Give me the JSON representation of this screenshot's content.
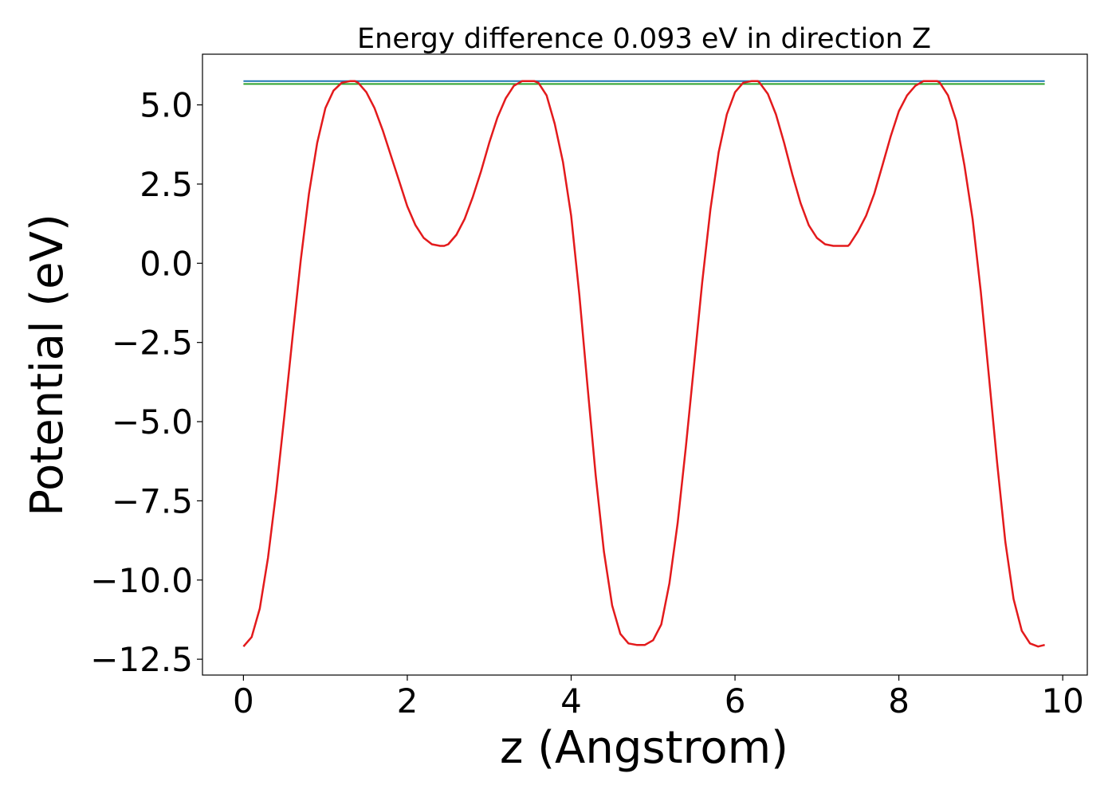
{
  "chart_data": {
    "type": "line",
    "title": "Energy difference 0.093 eV in direction Z",
    "xlabel": "z (Angstrom)",
    "ylabel": "Potential (eV)",
    "xlim": [
      -0.5,
      10.3
    ],
    "ylim": [
      -13.0,
      6.6
    ],
    "xticks": [
      0,
      2,
      4,
      6,
      8,
      10
    ],
    "xtick_labels": [
      "0",
      "2",
      "4",
      "6",
      "8",
      "10"
    ],
    "yticks": [
      -12.5,
      -10.0,
      -7.5,
      -5.0,
      -2.5,
      0.0,
      2.5,
      5.0
    ],
    "ytick_labels": [
      "−12.5",
      "−10.0",
      "−7.5",
      "−5.0",
      "−2.5",
      "0.0",
      "2.5",
      "5.0"
    ],
    "grid": false,
    "legend": "none",
    "colors": {
      "potential": "#e31a1c",
      "upper_line": "#1f77b4",
      "lower_line": "#2ca02c",
      "axis": "#000000"
    },
    "series": [
      {
        "x": [
          0.0,
          0.1,
          0.2,
          0.3,
          0.4,
          0.5,
          0.6,
          0.7,
          0.8,
          0.9,
          1.0,
          1.1,
          1.2,
          1.3,
          1.36,
          1.4,
          1.5,
          1.6,
          1.7,
          1.8,
          1.9,
          2.0,
          2.1,
          2.2,
          2.3,
          2.4,
          2.45,
          2.5,
          2.6,
          2.7,
          2.8,
          2.9,
          3.0,
          3.1,
          3.2,
          3.3,
          3.4,
          3.5,
          3.55,
          3.6,
          3.7,
          3.8,
          3.9,
          4.0,
          4.1,
          4.2,
          4.3,
          4.4,
          4.5,
          4.6,
          4.7,
          4.8,
          4.9,
          5.0,
          5.1,
          5.2,
          5.3,
          5.4,
          5.5,
          5.6,
          5.7,
          5.8,
          5.9,
          6.0,
          6.1,
          6.2,
          6.28,
          6.3,
          6.4,
          6.5,
          6.6,
          6.7,
          6.8,
          6.9,
          7.0,
          7.1,
          7.2,
          7.3,
          7.38,
          7.4,
          7.5,
          7.6,
          7.7,
          7.8,
          7.9,
          8.0,
          8.1,
          8.2,
          8.3,
          8.4,
          8.47,
          8.5,
          8.6,
          8.7,
          8.8,
          8.9,
          9.0,
          9.1,
          9.2,
          9.3,
          9.4,
          9.5,
          9.6,
          9.7,
          9.78
        ],
        "y": [
          -12.1,
          -11.8,
          -10.9,
          -9.3,
          -7.2,
          -4.8,
          -2.3,
          0.1,
          2.2,
          3.8,
          4.9,
          5.45,
          5.7,
          5.75,
          5.75,
          5.7,
          5.4,
          4.9,
          4.2,
          3.4,
          2.6,
          1.8,
          1.2,
          0.8,
          0.6,
          0.55,
          0.55,
          0.6,
          0.9,
          1.4,
          2.1,
          2.9,
          3.8,
          4.6,
          5.2,
          5.6,
          5.75,
          5.75,
          5.75,
          5.7,
          5.3,
          4.4,
          3.2,
          1.5,
          -1.0,
          -3.9,
          -6.7,
          -9.1,
          -10.8,
          -11.7,
          -12.0,
          -12.05,
          -12.05,
          -11.9,
          -11.4,
          -10.1,
          -8.2,
          -5.8,
          -3.2,
          -0.6,
          1.7,
          3.5,
          4.7,
          5.4,
          5.7,
          5.75,
          5.75,
          5.7,
          5.35,
          4.7,
          3.8,
          2.8,
          1.9,
          1.2,
          0.8,
          0.6,
          0.55,
          0.55,
          0.55,
          0.6,
          1.0,
          1.5,
          2.2,
          3.1,
          4.0,
          4.8,
          5.3,
          5.6,
          5.75,
          5.75,
          5.75,
          5.7,
          5.3,
          4.5,
          3.1,
          1.4,
          -0.9,
          -3.6,
          -6.3,
          -8.8,
          -10.6,
          -11.6,
          -12.0,
          -12.1,
          -12.05
        ]
      },
      {
        "x": [
          0.0,
          9.78
        ],
        "y": [
          5.75,
          5.75
        ]
      },
      {
        "x": [
          0.0,
          9.78
        ],
        "y": [
          5.66,
          5.66
        ]
      }
    ]
  }
}
